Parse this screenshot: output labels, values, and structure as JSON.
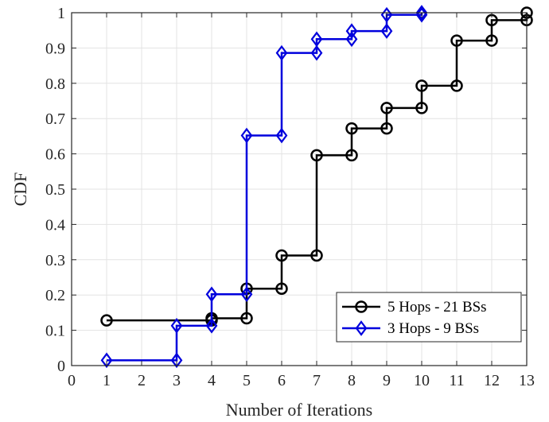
{
  "chart_data": {
    "type": "line",
    "step": true,
    "xlabel": "Number of Iterations",
    "ylabel": "CDF",
    "xlim": [
      0,
      13
    ],
    "ylim": [
      0,
      1
    ],
    "xticks": [
      "0",
      "1",
      "2",
      "3",
      "4",
      "5",
      "6",
      "7",
      "8",
      "9",
      "10",
      "11",
      "12",
      "13"
    ],
    "yticks": [
      "0",
      "0.1",
      "0.2",
      "0.3",
      "0.4",
      "0.5",
      "0.6",
      "0.7",
      "0.8",
      "0.9",
      "1"
    ],
    "grid": true,
    "legend_position": "bottom-right",
    "series": [
      {
        "name": "5 Hops - 21 BSs",
        "color": "#000000",
        "marker": "circle",
        "x": [
          1,
          4,
          5,
          6,
          7,
          8,
          9,
          10,
          11,
          12,
          13
        ],
        "y": [
          0.128,
          0.134,
          0.218,
          0.312,
          0.596,
          0.672,
          0.73,
          0.793,
          0.921,
          0.979,
          1.0
        ]
      },
      {
        "name": "3 Hops - 9 BSs",
        "color": "#0000dd",
        "marker": "diamond",
        "x": [
          1,
          3,
          4,
          5,
          6,
          7,
          8,
          9,
          10
        ],
        "y": [
          0.015,
          0.113,
          0.202,
          0.652,
          0.886,
          0.925,
          0.948,
          0.994,
          1.0
        ]
      }
    ]
  }
}
